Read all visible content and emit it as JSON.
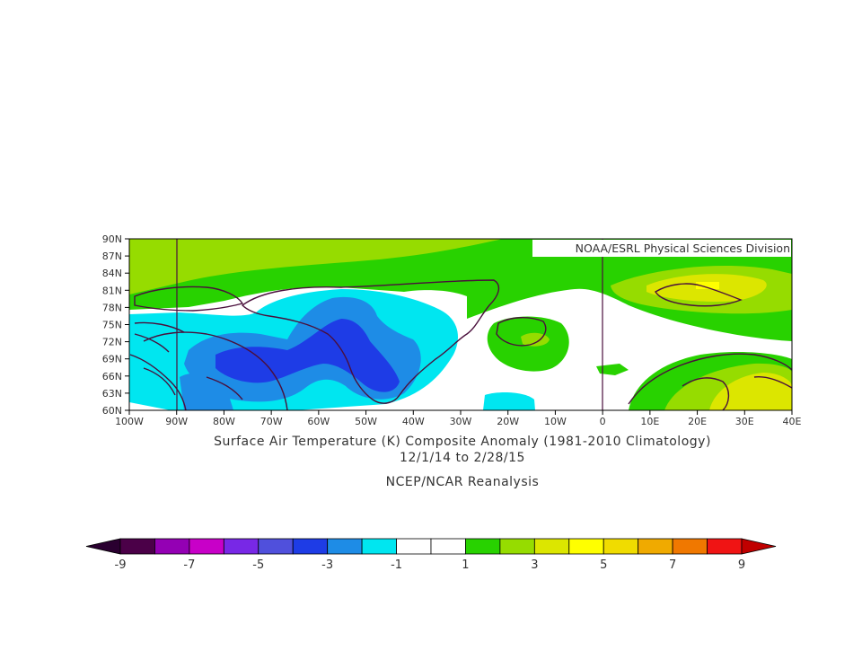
{
  "credit": "NOAA/ESRL Physical Sciences Division",
  "title_line1": "Surface Air Temperature (K) Composite Anomaly (1981-2010 Climatology)",
  "title_line2": "12/1/14  to 2/28/15",
  "title_line3": "NCEP/NCAR Reanalysis",
  "lat_labels": [
    "90N",
    "87N",
    "84N",
    "81N",
    "78N",
    "75N",
    "72N",
    "69N",
    "66N",
    "63N",
    "60N"
  ],
  "lon_labels": [
    "100W",
    "90W",
    "80W",
    "70W",
    "60W",
    "50W",
    "40W",
    "30W",
    "20W",
    "10W",
    "0",
    "10E",
    "20E",
    "30E",
    "40E"
  ],
  "colorbar": {
    "labels": [
      "-9",
      "-7",
      "-5",
      "-3",
      "-1",
      "1",
      "3",
      "5",
      "7",
      "9"
    ],
    "colors": [
      "#4b0048",
      "#9400b4",
      "#c800c8",
      "#7828e6",
      "#5050dc",
      "#1e3ce6",
      "#1e8ce6",
      "#00e6f0",
      "#ffffff",
      "#ffffff",
      "#28d200",
      "#96dc00",
      "#dce600",
      "#ffff00",
      "#f0dc00",
      "#f0aa00",
      "#f07800",
      "#f01414"
    ],
    "low_color": "#2a0030",
    "high_color": "#c00000"
  },
  "fill_colors": {
    "green": "#28d200",
    "light_green": "#96dc00",
    "yellow_green": "#dce600",
    "yellow": "#ffff00",
    "cyan": "#00e6f0",
    "sky_blue": "#1e8ce6",
    "blue": "#1e3ce6",
    "coast": "#4a0f3c"
  }
}
